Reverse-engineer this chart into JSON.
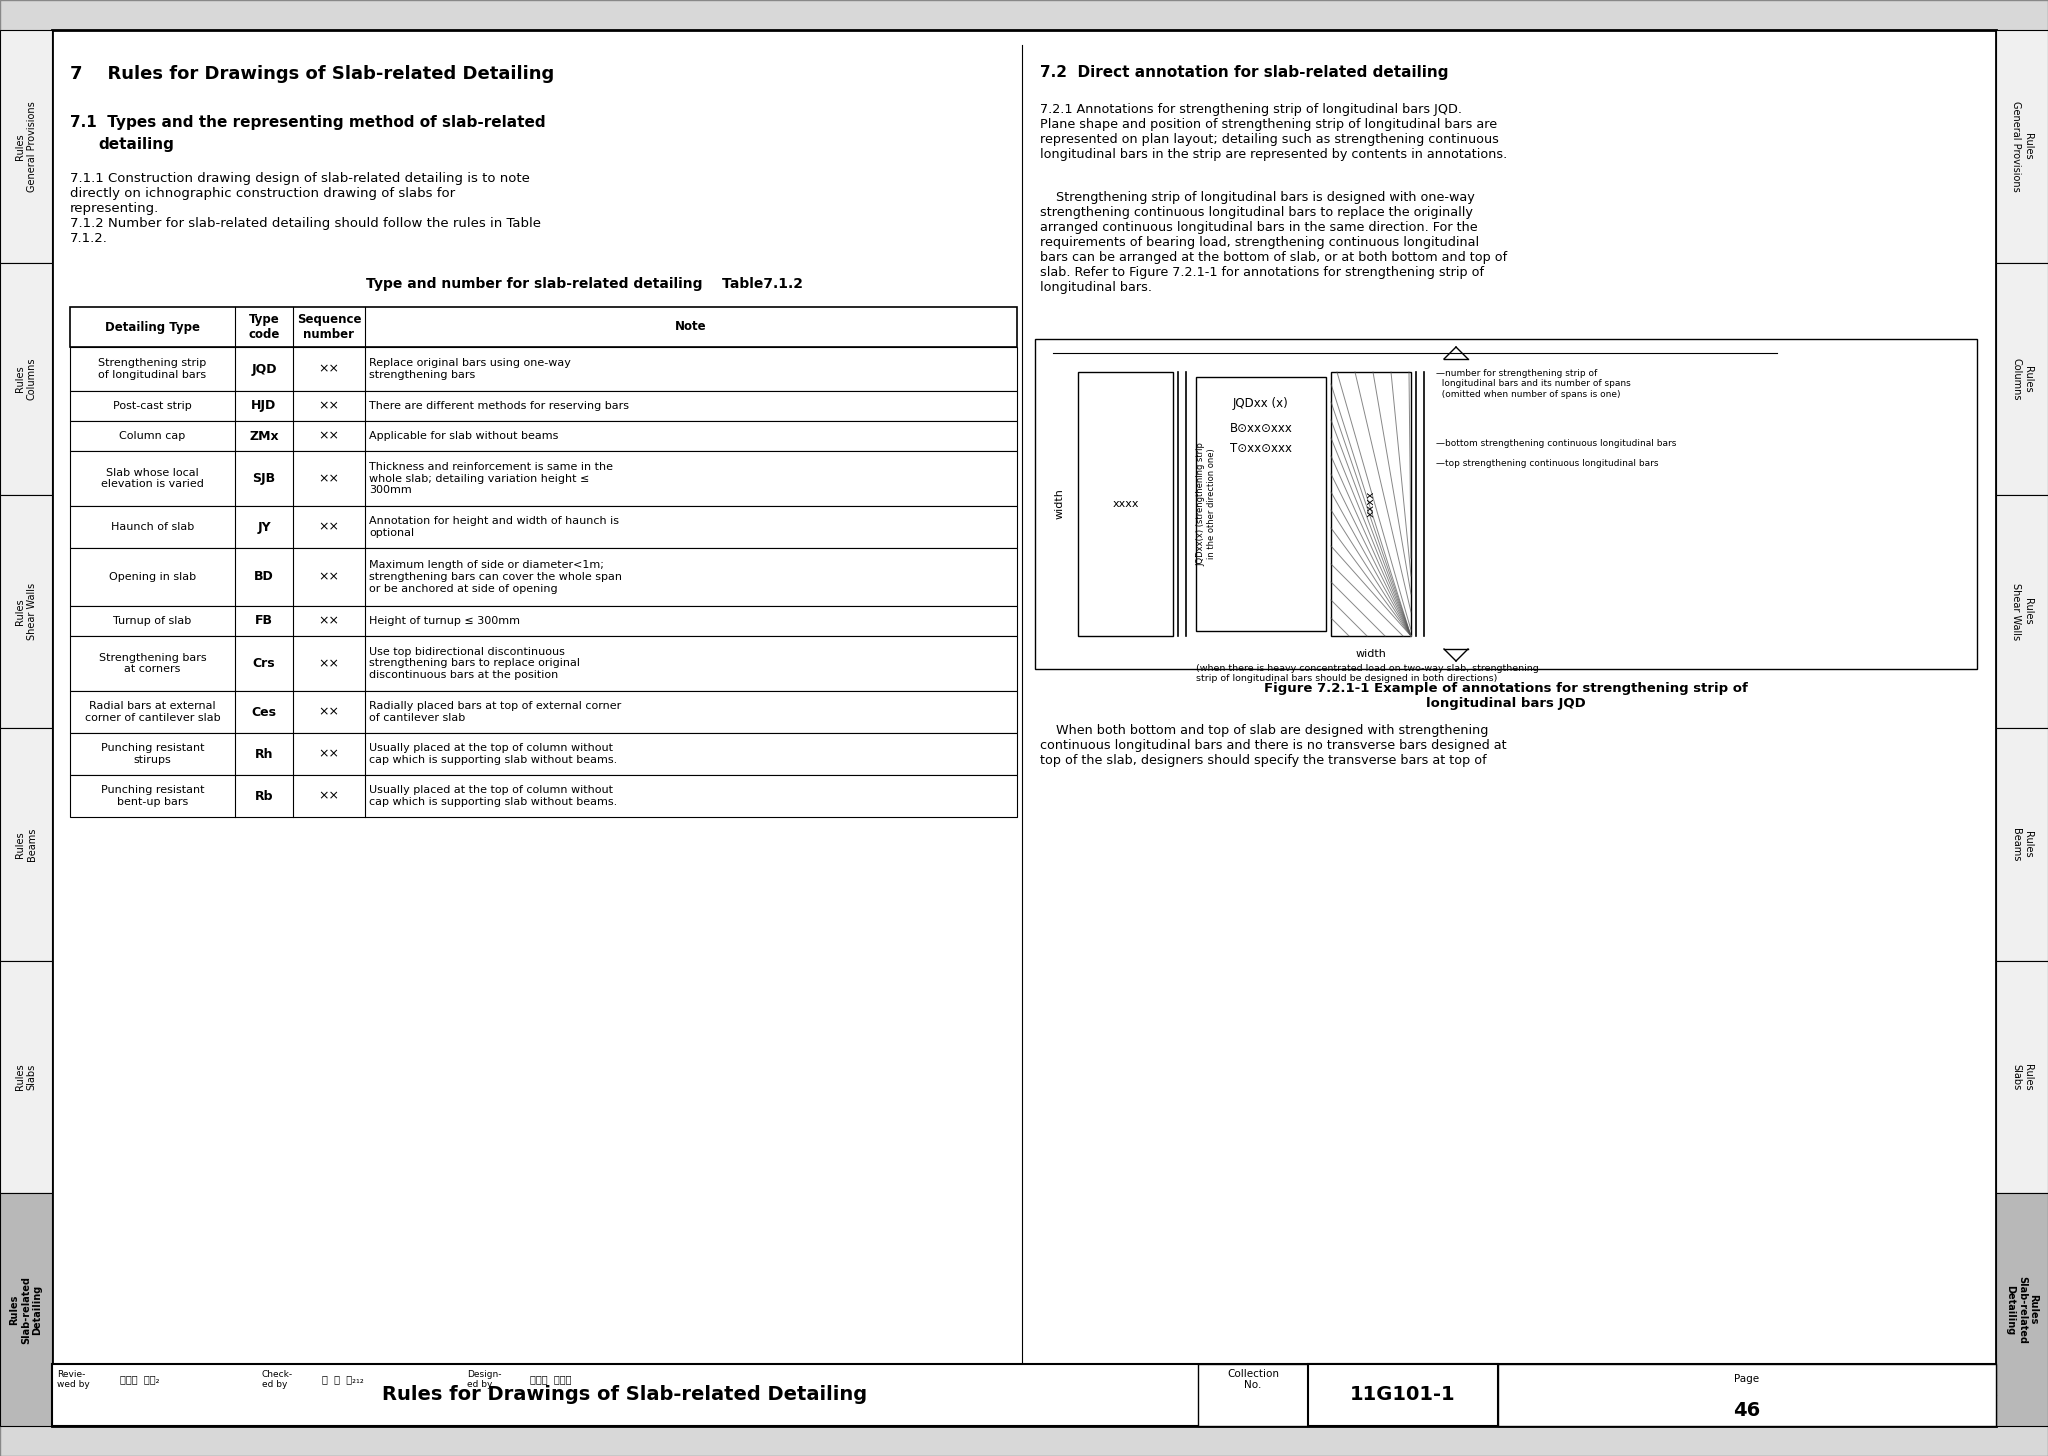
{
  "title_main": "7    Rules for Drawings of Slab-related Detailing",
  "section_71_title": "7.1  Types and the representing method of slab-related detailing",
  "body_711": "7.1.1 Construction drawing design of slab-related detailing is to note\ndirectly on ichnographic construction drawing of slabs for\nrepresenting.\n7.1.2 Number for slab-related detailing should follow the rules in Table\n7.1.2.",
  "table_title": "Type and number for slab-related detailing    Table7.1.2",
  "table_headers": [
    "Detailing Type",
    "Type\ncode",
    "Sequence\nnumber",
    "Note"
  ],
  "table_rows": [
    [
      "Strengthening strip\nof longitudinal bars",
      "JQD",
      "××",
      "Replace original bars using one-way\nstrengthening bars"
    ],
    [
      "Post-cast strip",
      "HJD",
      "××",
      "There are different methods for reserving bars"
    ],
    [
      "Column cap",
      "ZMx",
      "××",
      "Applicable for slab without beams"
    ],
    [
      "Slab whose local\nelevation is varied",
      "SJB",
      "××",
      "Thickness and reinforcement is same in the\nwhole slab; detailing variation height ≤\n300mm"
    ],
    [
      "Haunch of slab",
      "JY",
      "××",
      "Annotation for height and width of haunch is\noptional"
    ],
    [
      "Opening in slab",
      "BD",
      "××",
      "Maximum length of side or diameter<1m;\nstrengthening bars can cover the whole span\nor be anchored at side of opening"
    ],
    [
      "Turnup of slab",
      "FB",
      "××",
      "Height of turnup ≤ 300mm"
    ],
    [
      "Strengthening bars\nat corners",
      "Crs",
      "××",
      "Use top bidirectional discontinuous\nstrengthening bars to replace original\ndiscontinuous bars at the position"
    ],
    [
      "Radial bars at external\ncorner of cantilever slab",
      "Ces",
      "××",
      "Radially placed bars at top of external corner\nof cantilever slab"
    ],
    [
      "Punching resistant\nstirups",
      "Rh",
      "××",
      "Usually placed at the top of column without\ncap which is supporting slab without beams."
    ],
    [
      "Punching resistant\nbent-up bars",
      "Rb",
      "××",
      "Usually placed at the top of column without\ncap which is supporting slab without beams."
    ]
  ],
  "section_72_title": "7.2  Direct annotation for slab-related detailing",
  "section_721_text1": "7.2.1 Annotations for strengthening strip of longitudinal bars JQD.\nPlane shape and position of strengthening strip of longitudinal bars are\nrepresented on plan layout; detailing such as strengthening continuous\nlongitudinal bars in the strip are represented by contents in annotations.",
  "section_721_text2": "    Strengthening strip of longitudinal bars is designed with one-way\nstrengthening continuous longitudinal bars to replace the originally\narranged continuous longitudinal bars in the same direction. For the\nrequirements of bearing load, strengthening continuous longitudinal\nbars can be arranged at the bottom of slab, or at both bottom and top of\nslab. Refer to Figure 7.2.1-1 for annotations for strengthening strip of\nlongitudinal bars.",
  "figure_caption": "Figure 7.2.1-1 Example of annotations for strengthening strip of\nlongitudinal bars JQD",
  "section_after_fig": "    When both bottom and top of slab are designed with strengthening\ncontinuous longitudinal bars and there is no transverse bars designed at\ntop of the slab, designers should specify the transverse bars at top of",
  "footer_title": "Rules for Drawings of Slab-related Detailing",
  "footer_coll_label": "Collection\nNo.",
  "footer_coll_val": "11G101-1",
  "footer_page_label": "Page",
  "footer_page_val": "46",
  "left_tabs": [
    [
      "Rules\nGeneral Provisions",
      false
    ],
    [
      "Rules\nColumns",
      false
    ],
    [
      "Rules\nShear Walls",
      false
    ],
    [
      "Rules\nBeams",
      false
    ],
    [
      "Rules\nSlabs",
      false
    ],
    [
      "Rules\nSlab-related\nDetailing",
      true
    ]
  ],
  "right_tabs": [
    [
      "Rules\nGeneral Provisions",
      false
    ],
    [
      "Rules\nColumns",
      false
    ],
    [
      "Rules\nShear Walls",
      false
    ],
    [
      "Rules\nBeams",
      false
    ],
    [
      "Rules\nSlabs",
      false
    ],
    [
      "Rules\nSlab-related\nDetailing",
      true
    ]
  ]
}
